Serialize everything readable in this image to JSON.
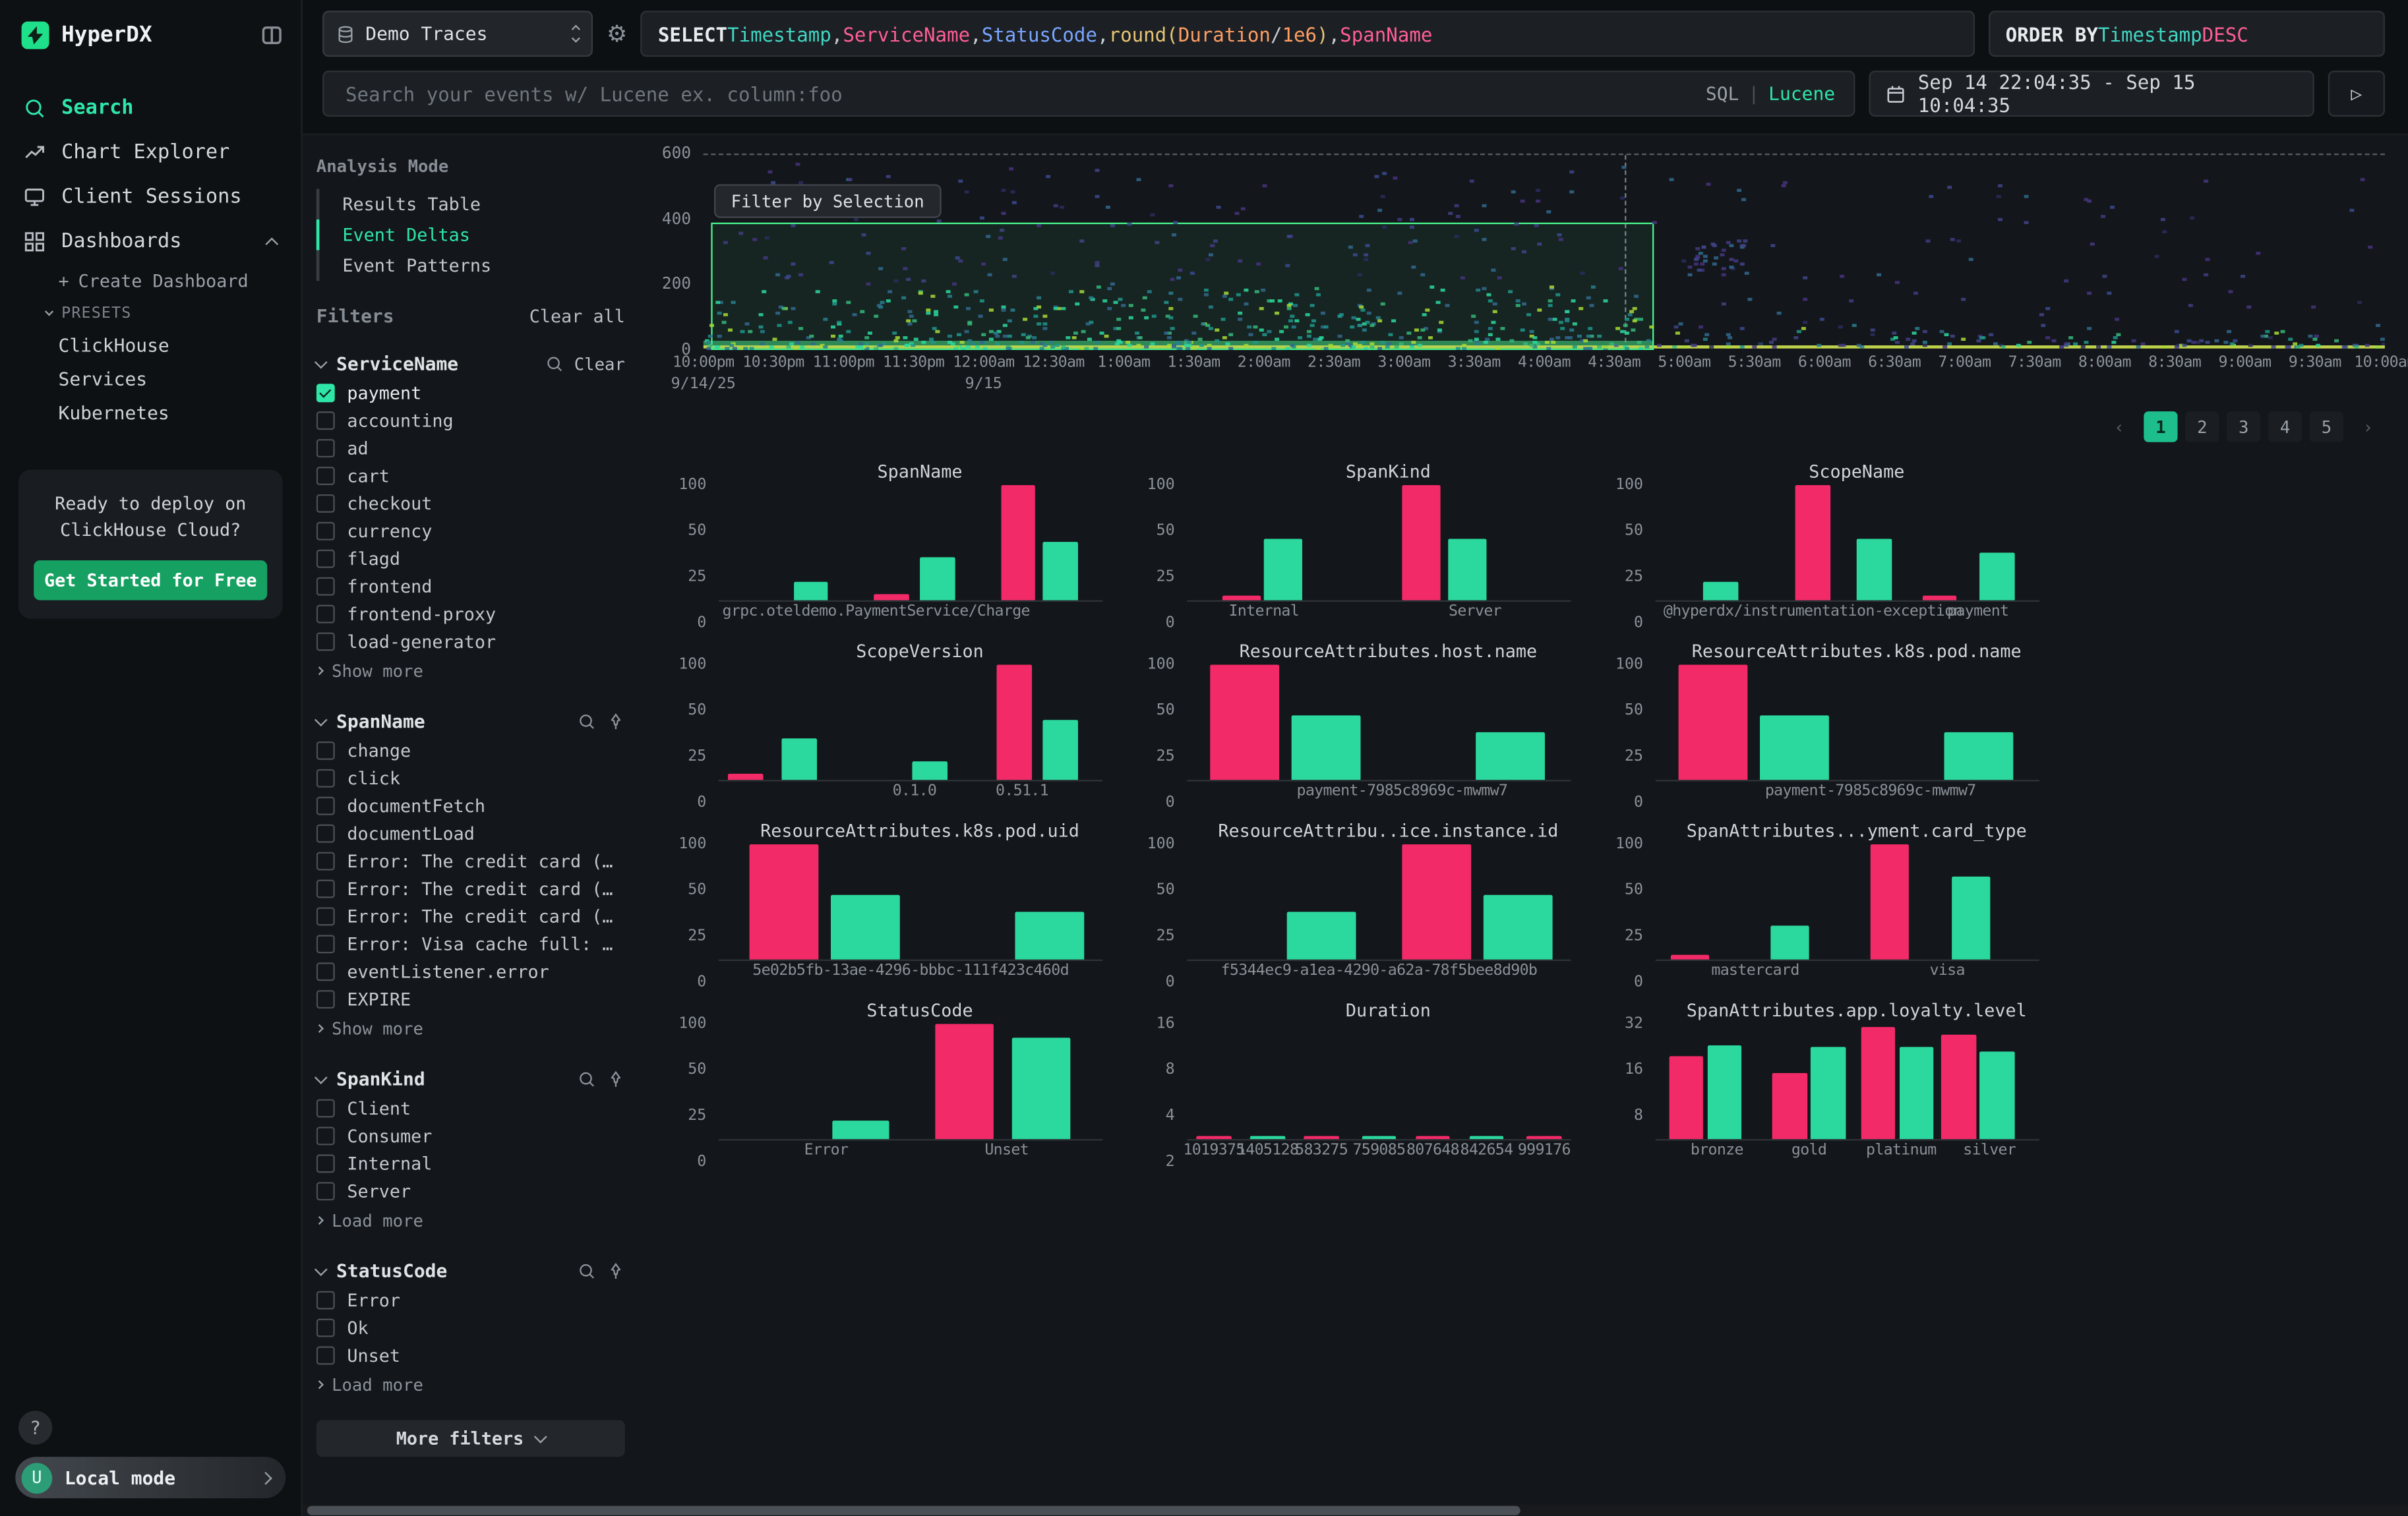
{
  "app": {
    "name": "HyperDX"
  },
  "colors": {
    "accent": "#2ee6a8",
    "bar_pink": "#f32a68",
    "bar_green": "#2bd99e",
    "selection_green": "#46f18c",
    "promo_button_green": "#16a062"
  },
  "sidebar": {
    "logo_text": "HyperDX",
    "items": [
      {
        "label": "Search",
        "active": true
      },
      {
        "label": "Chart Explorer"
      },
      {
        "label": "Client Sessions"
      },
      {
        "label": "Dashboards",
        "expanded": true
      }
    ],
    "create_dashboard": "Create Dashboard",
    "presets_label": "PRESETS",
    "presets": [
      "ClickHouse",
      "Services",
      "Kubernetes"
    ],
    "promo": {
      "line1": "Ready to deploy on",
      "line2": "ClickHouse Cloud?",
      "cta": "Get Started for Free"
    },
    "help_label": "?",
    "user": {
      "initial": "U",
      "label": "Local mode"
    }
  },
  "topbar": {
    "source_select": "Demo Traces",
    "sql_tokens": [
      {
        "t": "SELECT ",
        "c": "kw"
      },
      {
        "t": "Timestamp",
        "c": "teal"
      },
      {
        "t": ", ",
        "c": "plain"
      },
      {
        "t": "ServiceName",
        "c": "pink"
      },
      {
        "t": ", ",
        "c": "plain"
      },
      {
        "t": "StatusCode",
        "c": "blue"
      },
      {
        "t": ", ",
        "c": "plain"
      },
      {
        "t": "round(",
        "c": "yellow"
      },
      {
        "t": "Duration",
        "c": "orange"
      },
      {
        "t": " / ",
        "c": "plain"
      },
      {
        "t": "1e6",
        "c": "orange"
      },
      {
        "t": ")",
        "c": "yellow"
      },
      {
        "t": ", ",
        "c": "plain"
      },
      {
        "t": "SpanName",
        "c": "pink"
      }
    ],
    "order_by_tokens": [
      {
        "t": "ORDER BY ",
        "c": "kw"
      },
      {
        "t": "Timestamp ",
        "c": "teal"
      },
      {
        "t": "DESC",
        "c": "pink"
      }
    ],
    "search_placeholder": "Search your events w/ Lucene ex. column:foo",
    "lang_sql": "SQL",
    "lang_sep": "|",
    "lang_lucene": "Lucene",
    "date_range": "Sep 14 22:04:35 - Sep 15 10:04:35",
    "run_label": "▷"
  },
  "panel": {
    "analysis_mode_label": "Analysis Mode",
    "modes": [
      {
        "label": "Results Table"
      },
      {
        "label": "Event Deltas",
        "active": true
      },
      {
        "label": "Event Patterns"
      }
    ],
    "filters_label": "Filters",
    "clear_all": "Clear all",
    "groups": [
      {
        "name": "ServiceName",
        "action": "Clear",
        "more": "Show more",
        "items": [
          {
            "label": "payment",
            "checked": true
          },
          {
            "label": "accounting"
          },
          {
            "label": "ad"
          },
          {
            "label": "cart"
          },
          {
            "label": "checkout"
          },
          {
            "label": "currency"
          },
          {
            "label": "flagd"
          },
          {
            "label": "frontend"
          },
          {
            "label": "frontend-proxy"
          },
          {
            "label": "load-generator"
          }
        ]
      },
      {
        "name": "SpanName",
        "more": "Show more",
        "items": [
          {
            "label": "change"
          },
          {
            "label": "click"
          },
          {
            "label": "documentFetch"
          },
          {
            "label": "documentLoad"
          },
          {
            "label": "Error: The credit card (…"
          },
          {
            "label": "Error: The credit card (…"
          },
          {
            "label": "Error: The credit card (…"
          },
          {
            "label": "Error: Visa cache full: …"
          },
          {
            "label": "eventListener.error"
          },
          {
            "label": "EXPIRE"
          }
        ]
      },
      {
        "name": "SpanKind",
        "more": "Load more",
        "items": [
          {
            "label": "Client"
          },
          {
            "label": "Consumer"
          },
          {
            "label": "Internal"
          },
          {
            "label": "Server"
          }
        ]
      },
      {
        "name": "StatusCode",
        "more": "Load more",
        "items": [
          {
            "label": "Error"
          },
          {
            "label": "Ok"
          },
          {
            "label": "Unset"
          }
        ]
      }
    ],
    "more_filters": "More filters"
  },
  "pagination": {
    "prev": "‹",
    "next": "›",
    "pages": [
      "1",
      "2",
      "3",
      "4",
      "5"
    ],
    "active_page": "1"
  },
  "chart_data": [
    {
      "type": "heatmap",
      "name": "events-over-time",
      "filter_button": "Filter by Selection",
      "y_ticks": [
        "600",
        "400",
        "200",
        "0"
      ],
      "x_ticks": [
        "10:00pm",
        "10:30pm",
        "11:00pm",
        "11:30pm",
        "12:00am",
        "12:30am",
        "1:00am",
        "1:30am",
        "2:00am",
        "2:30am",
        "3:00am",
        "3:30am",
        "4:00am",
        "4:30am",
        "5:00am",
        "5:30am",
        "6:00am",
        "6:30am",
        "7:00am",
        "7:30am",
        "8:00am",
        "8:30am",
        "9:00am",
        "9:30am",
        "10:00am"
      ],
      "date_ticks": [
        {
          "label": "9/14/25",
          "tick": 0
        },
        {
          "label": "9/15",
          "tick": 4
        }
      ],
      "selection": {
        "left_pct": 0.5,
        "width_pct": 56,
        "top_pct": 35,
        "note": "green brush selection from ~10:00pm to ~4:50am, duration 0–420ms"
      }
    },
    {
      "type": "bar",
      "title": "SpanName",
      "y_ticks": [
        "100",
        "50",
        "25",
        "0"
      ],
      "bars": [
        {
          "x": 24,
          "w": 9,
          "h": 16,
          "c": "g",
          "v": 10
        },
        {
          "x": 45,
          "w": 9,
          "h": 5,
          "c": "p",
          "v": 2
        },
        {
          "x": 57,
          "w": 9,
          "h": 37,
          "c": "g",
          "v": 24
        },
        {
          "x": 78,
          "w": 9,
          "h": 100,
          "c": "p",
          "v": 100
        },
        {
          "x": 89,
          "w": 9,
          "h": 51,
          "c": "g",
          "v": 32
        }
      ],
      "x_labels": [
        {
          "t": "grpc.oteldemo.PaymentService/Charge",
          "x": 41
        }
      ]
    },
    {
      "type": "bar",
      "title": "SpanKind",
      "y_ticks": [
        "100",
        "50",
        "25",
        "0"
      ],
      "bars": [
        {
          "x": 14,
          "w": 10,
          "h": 4,
          "c": "p",
          "v": 2
        },
        {
          "x": 25,
          "w": 10,
          "h": 54,
          "c": "g",
          "v": 33
        },
        {
          "x": 61,
          "w": 10,
          "h": 100,
          "c": "p",
          "v": 100
        },
        {
          "x": 73,
          "w": 10,
          "h": 54,
          "c": "g",
          "v": 33
        }
      ],
      "x_labels": [
        {
          "t": "Internal",
          "x": 20
        },
        {
          "t": "Server",
          "x": 75
        }
      ]
    },
    {
      "type": "bar",
      "title": "ScopeName",
      "y_ticks": [
        "100",
        "50",
        "25",
        "0"
      ],
      "bars": [
        {
          "x": 17,
          "w": 9,
          "h": 16,
          "c": "g",
          "v": 10
        },
        {
          "x": 41,
          "w": 9,
          "h": 100,
          "c": "p",
          "v": 100
        },
        {
          "x": 57,
          "w": 9,
          "h": 54,
          "c": "g",
          "v": 33
        },
        {
          "x": 74,
          "w": 9,
          "h": 4,
          "c": "p",
          "v": 2
        },
        {
          "x": 89,
          "w": 9,
          "h": 42,
          "c": "g",
          "v": 26
        }
      ],
      "x_labels": [
        {
          "t": "@hyperdx/instrumentation-exception",
          "x": 41
        },
        {
          "t": "payment",
          "x": 84
        }
      ]
    },
    {
      "type": "bar",
      "title": "ScopeVersion",
      "y_ticks": [
        "100",
        "50",
        "25",
        "0"
      ],
      "bars": [
        {
          "x": 7,
          "w": 9,
          "h": 6,
          "c": "p",
          "v": 3
        },
        {
          "x": 21,
          "w": 9,
          "h": 36,
          "c": "g",
          "v": 23
        },
        {
          "x": 55,
          "w": 9,
          "h": 16,
          "c": "g",
          "v": 10
        },
        {
          "x": 77,
          "w": 9,
          "h": 100,
          "c": "p",
          "v": 100
        },
        {
          "x": 89,
          "w": 9,
          "h": 52,
          "c": "g",
          "v": 32
        }
      ],
      "x_labels": [
        {
          "t": "0.1.0",
          "x": 51
        },
        {
          "t": "0.51.1",
          "x": 79
        }
      ]
    },
    {
      "type": "bar",
      "title": "ResourceAttributes.host.name",
      "y_ticks": [
        "100",
        "50",
        "25",
        "0"
      ],
      "bars": [
        {
          "x": 15,
          "w": 18,
          "h": 100,
          "c": "p",
          "v": 100
        },
        {
          "x": 36,
          "w": 18,
          "h": 56,
          "c": "g",
          "v": 35
        },
        {
          "x": 84,
          "w": 18,
          "h": 42,
          "c": "g",
          "v": 26
        }
      ],
      "x_labels": [
        {
          "t": "payment-7985c8969c-mwmw7",
          "x": 56
        }
      ]
    },
    {
      "type": "bar",
      "title": "ResourceAttributes.k8s.pod.name",
      "y_ticks": [
        "100",
        "50",
        "25",
        "0"
      ],
      "bars": [
        {
          "x": 15,
          "w": 18,
          "h": 100,
          "c": "p",
          "v": 100
        },
        {
          "x": 36,
          "w": 18,
          "h": 56,
          "c": "g",
          "v": 35
        },
        {
          "x": 84,
          "w": 18,
          "h": 42,
          "c": "g",
          "v": 26
        }
      ],
      "x_labels": [
        {
          "t": "payment-7985c8969c-mwmw7",
          "x": 56
        }
      ]
    },
    {
      "type": "bar",
      "title": "ResourceAttributes.k8s.pod.uid",
      "y_ticks": [
        "100",
        "50",
        "25",
        "0"
      ],
      "bars": [
        {
          "x": 17,
          "w": 18,
          "h": 100,
          "c": "p",
          "v": 100
        },
        {
          "x": 38,
          "w": 18,
          "h": 56,
          "c": "g",
          "v": 35
        },
        {
          "x": 86,
          "w": 18,
          "h": 42,
          "c": "g",
          "v": 26
        }
      ],
      "x_labels": [
        {
          "t": "5e02b5fb-13ae-4296-bbbc-111f423c460d",
          "x": 50
        }
      ]
    },
    {
      "type": "bar",
      "title": "ResourceAttribu..ice.instance.id",
      "y_ticks": [
        "100",
        "50",
        "25",
        "0"
      ],
      "bars": [
        {
          "x": 35,
          "w": 18,
          "h": 42,
          "c": "g",
          "v": 26
        },
        {
          "x": 65,
          "w": 18,
          "h": 100,
          "c": "p",
          "v": 100
        },
        {
          "x": 86,
          "w": 18,
          "h": 56,
          "c": "g",
          "v": 35
        }
      ],
      "x_labels": [
        {
          "t": "f5344ec9-a1ea-4290-a62a-78f5bee8d90b",
          "x": 50
        }
      ]
    },
    {
      "type": "bar",
      "title": "SpanAttributes...yment.card_type",
      "y_ticks": [
        "100",
        "50",
        "25",
        "0"
      ],
      "bars": [
        {
          "x": 9,
          "w": 10,
          "h": 4,
          "c": "p",
          "v": 2
        },
        {
          "x": 35,
          "w": 10,
          "h": 30,
          "c": "g",
          "v": 19
        },
        {
          "x": 61,
          "w": 10,
          "h": 100,
          "c": "p",
          "v": 100
        },
        {
          "x": 82,
          "w": 10,
          "h": 72,
          "c": "g",
          "v": 55
        }
      ],
      "x_labels": [
        {
          "t": "mastercard",
          "x": 26
        },
        {
          "t": "visa",
          "x": 76
        }
      ]
    },
    {
      "type": "bar",
      "title": "StatusCode",
      "y_ticks": [
        "100",
        "50",
        "25",
        "0"
      ],
      "bars": [
        {
          "x": 37,
          "w": 15,
          "h": 16,
          "c": "g",
          "v": 10
        },
        {
          "x": 64,
          "w": 15,
          "h": 100,
          "c": "p",
          "v": 100
        },
        {
          "x": 84,
          "w": 15,
          "h": 88,
          "c": "g",
          "v": 78
        }
      ],
      "x_labels": [
        {
          "t": "Error",
          "x": 28
        },
        {
          "t": "Unset",
          "x": 75
        }
      ]
    },
    {
      "type": "bar",
      "title": "Duration",
      "y_ticks": [
        "16",
        "8",
        "4",
        "2"
      ],
      "bars": [
        {
          "x": 7,
          "w": 9,
          "h": 3,
          "c": "p",
          "v": 1
        },
        {
          "x": 21,
          "w": 9,
          "h": 3,
          "c": "g",
          "v": 1
        },
        {
          "x": 35,
          "w": 9,
          "h": 3,
          "c": "p",
          "v": 1
        },
        {
          "x": 50,
          "w": 9,
          "h": 3,
          "c": "g",
          "v": 1
        },
        {
          "x": 64,
          "w": 9,
          "h": 3,
          "c": "p",
          "v": 1
        },
        {
          "x": 78,
          "w": 9,
          "h": 3,
          "c": "g",
          "v": 1
        },
        {
          "x": 93,
          "w": 9,
          "h": 3,
          "c": "p",
          "v": 1
        }
      ],
      "x_labels": [
        {
          "t": "1019375",
          "x": 7
        },
        {
          "t": "1405128",
          "x": 21
        },
        {
          "t": "583275",
          "x": 35
        },
        {
          "t": "759085",
          "x": 50
        },
        {
          "t": "807648",
          "x": 64
        },
        {
          "t": "842654",
          "x": 78
        },
        {
          "t": "999176",
          "x": 93
        }
      ]
    },
    {
      "type": "bar",
      "title": "SpanAttributes.app.loyalty.level",
      "y_ticks": [
        "32",
        "16",
        "8",
        ""
      ],
      "bars": [
        {
          "x": 8,
          "w": 9,
          "h": 72,
          "c": "p",
          "v": 18
        },
        {
          "x": 18,
          "w": 9,
          "h": 82,
          "c": "g",
          "v": 22
        },
        {
          "x": 35,
          "w": 9,
          "h": 58,
          "c": "p",
          "v": 14
        },
        {
          "x": 45,
          "w": 9,
          "h": 80,
          "c": "g",
          "v": 21
        },
        {
          "x": 58,
          "w": 9,
          "h": 97,
          "c": "p",
          "v": 30
        },
        {
          "x": 68,
          "w": 9,
          "h": 80,
          "c": "g",
          "v": 21
        },
        {
          "x": 79,
          "w": 9,
          "h": 91,
          "c": "p",
          "v": 26
        },
        {
          "x": 89,
          "w": 9,
          "h": 76,
          "c": "g",
          "v": 20
        }
      ],
      "x_labels": [
        {
          "t": "bronze",
          "x": 16
        },
        {
          "t": "gold",
          "x": 40
        },
        {
          "t": "platinum",
          "x": 64
        },
        {
          "t": "silver",
          "x": 87
        }
      ]
    }
  ]
}
